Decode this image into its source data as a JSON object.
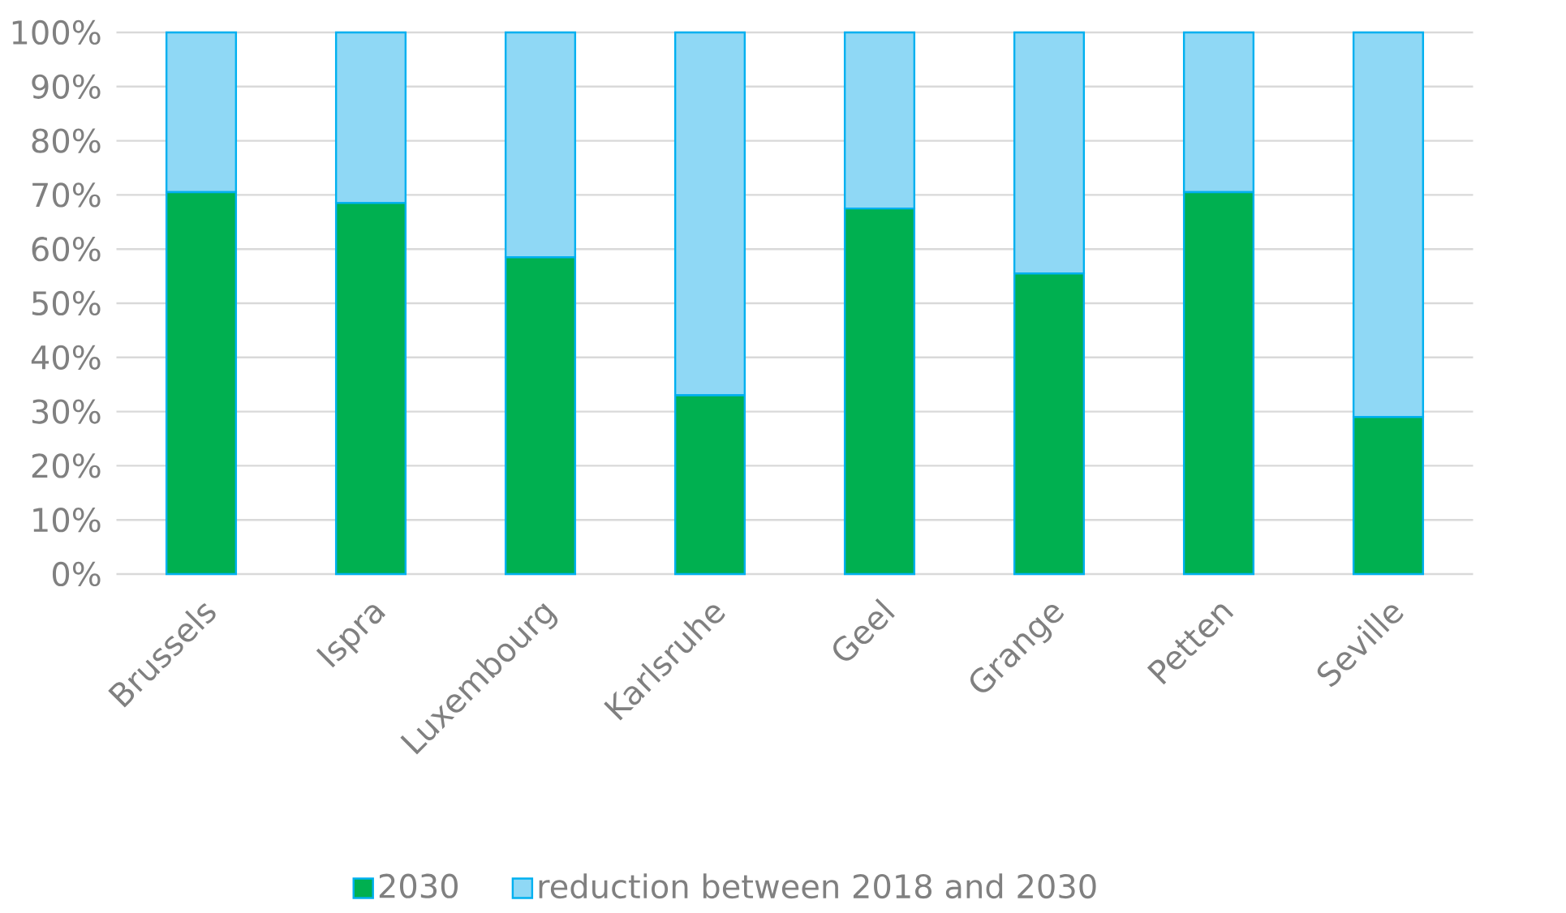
{
  "chart_data": {
    "type": "bar",
    "stacked": true,
    "categories": [
      "Brussels",
      "Ispra",
      "Luxembourg",
      "Karlsruhe",
      "Geel",
      "Grange",
      "Petten",
      "Seville"
    ],
    "series": [
      {
        "name": "2030",
        "color": "#00b050",
        "values": [
          70.5,
          68.5,
          58.5,
          33,
          67.5,
          55.5,
          70.5,
          29
        ]
      },
      {
        "name": "reduction between 2018 and 2030",
        "color": "#8fd8f5",
        "values": [
          29.5,
          31.5,
          41.5,
          67,
          32.5,
          44.5,
          29.5,
          71
        ]
      }
    ],
    "ylim": [
      0,
      100
    ],
    "yticks": [
      {
        "value": 0,
        "label": "0%"
      },
      {
        "value": 10,
        "label": "10%"
      },
      {
        "value": 20,
        "label": "20%"
      },
      {
        "value": 30,
        "label": "30%"
      },
      {
        "value": 40,
        "label": "40%"
      },
      {
        "value": 50,
        "label": "50%"
      },
      {
        "value": 60,
        "label": "60%"
      },
      {
        "value": 70,
        "label": "70%"
      },
      {
        "value": 80,
        "label": "80%"
      },
      {
        "value": 90,
        "label": "90%"
      },
      {
        "value": 100,
        "label": "100%"
      }
    ],
    "grid": "y",
    "legend": "bottom"
  }
}
